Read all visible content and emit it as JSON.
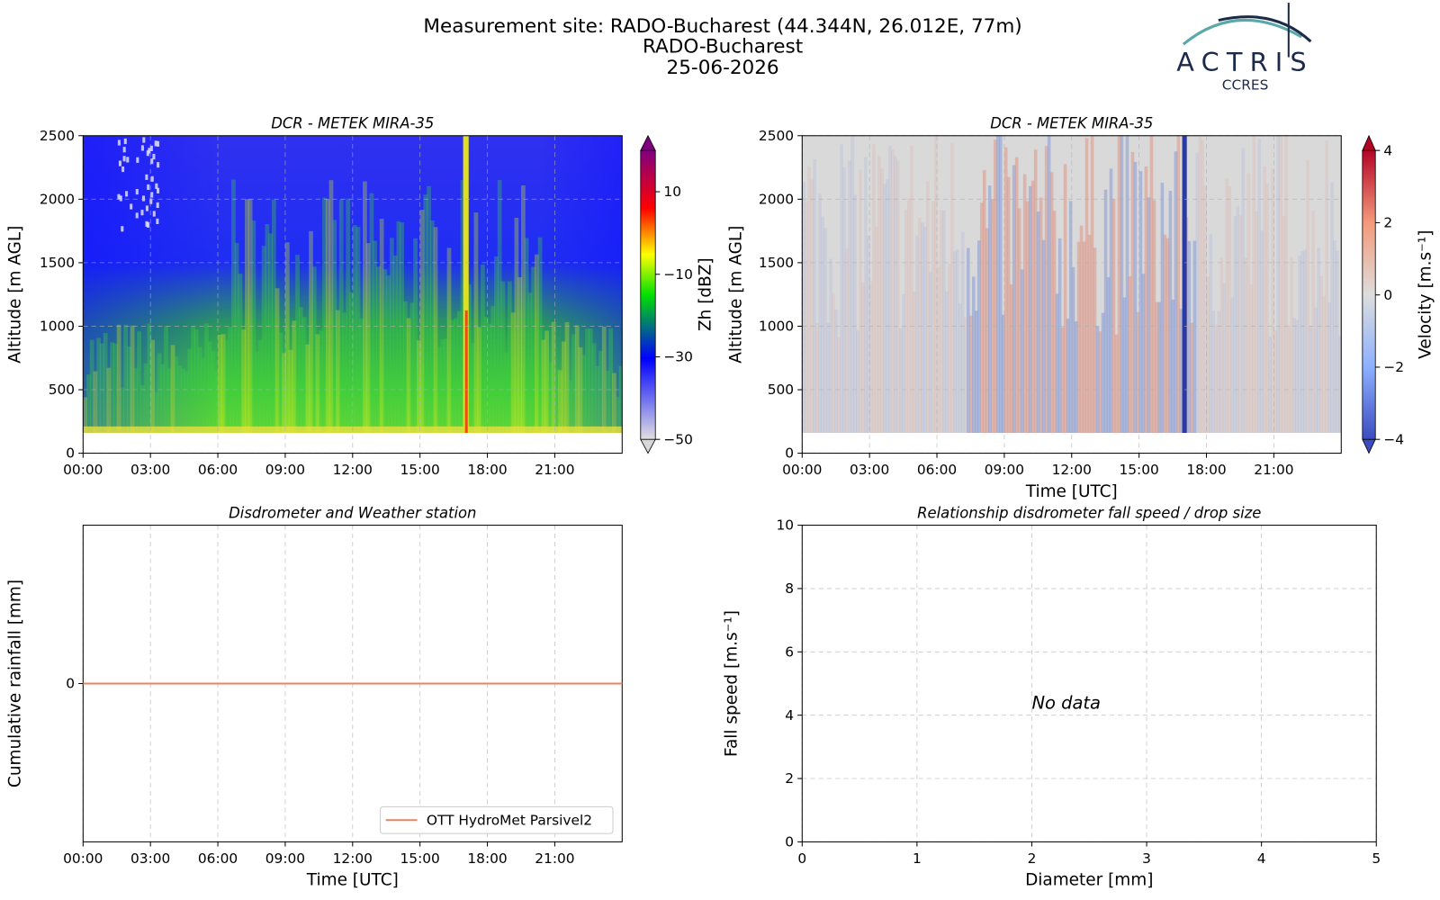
{
  "header": {
    "title": [
      "Measurement site: RADO-Bucharest (44.344N, 26.012E, 77m)",
      "RADO-Bucharest",
      "25-06-2026"
    ],
    "logo": "ACTRIS",
    "logo_sub": "CCRES"
  },
  "chart_data": [
    {
      "type": "heatmap",
      "title": "DCR - METEK MIRA-35",
      "ylabel": "Altitude [m AGL]",
      "xlim": [
        0,
        24
      ],
      "xticks": [
        {
          "value": 0,
          "label": "00:00"
        },
        {
          "value": 3,
          "label": "03:00"
        },
        {
          "value": 6,
          "label": "06:00"
        },
        {
          "value": 9,
          "label": "09:00"
        },
        {
          "value": 12,
          "label": "12:00"
        },
        {
          "value": 15,
          "label": "15:00"
        },
        {
          "value": 18,
          "label": "18:00"
        },
        {
          "value": 21,
          "label": "21:00"
        }
      ],
      "ylim": [
        0,
        2500
      ],
      "yticks": [
        0,
        500,
        1000,
        1500,
        2000,
        2500
      ],
      "grid": true,
      "colorbar": {
        "label": "Zh [dBZ]",
        "lim": [
          -50,
          20
        ],
        "ticks": [
          10,
          {
            "value": -10,
            "label": "−10"
          },
          {
            "value": -30,
            "label": "−30"
          },
          {
            "value": -50,
            "label": "−50"
          }
        ],
        "colormap": "jet"
      }
    },
    {
      "type": "heatmap",
      "title": "DCR - METEK MIRA-35",
      "ylabel": "Altitude [m AGL]",
      "xlabel": "Time [UTC]",
      "xlim": [
        0,
        24
      ],
      "xticks": [
        {
          "value": 0,
          "label": "00:00"
        },
        {
          "value": 3,
          "label": "03:00"
        },
        {
          "value": 6,
          "label": "06:00"
        },
        {
          "value": 9,
          "label": "09:00"
        },
        {
          "value": 12,
          "label": "12:00"
        },
        {
          "value": 15,
          "label": "15:00"
        },
        {
          "value": 18,
          "label": "18:00"
        },
        {
          "value": 21,
          "label": "21:00"
        }
      ],
      "ylim": [
        0,
        2500
      ],
      "yticks": [
        0,
        500,
        1000,
        1500,
        2000,
        2500
      ],
      "grid": true,
      "colorbar": {
        "label": "Velocity [m.s⁻¹]",
        "lim": [
          -4,
          4
        ],
        "ticks": [
          4,
          2,
          0,
          {
            "value": -2,
            "label": "−2"
          },
          {
            "value": -4,
            "label": "−4"
          }
        ],
        "colormap": "coolwarm"
      }
    },
    {
      "type": "line",
      "title": "Disdrometer and Weather station",
      "ylabel": "Cumulative rainfall [mm]",
      "xlabel": "Time [UTC]",
      "xlim": [
        0,
        24
      ],
      "xticks": [
        {
          "value": 0,
          "label": "00:00"
        },
        {
          "value": 3,
          "label": "03:00"
        },
        {
          "value": 6,
          "label": "06:00"
        },
        {
          "value": 9,
          "label": "09:00"
        },
        {
          "value": 12,
          "label": "12:00"
        },
        {
          "value": 15,
          "label": "15:00"
        },
        {
          "value": 18,
          "label": "18:00"
        },
        {
          "value": 21,
          "label": "21:00"
        }
      ],
      "ylim": [
        -1,
        1
      ],
      "yticks": [
        0
      ],
      "grid": true,
      "legend": "lower right",
      "x": [
        0,
        24
      ],
      "series": [
        {
          "name": "OTT HydroMet Parsivel2",
          "color": "#e8845e",
          "values": [
            0,
            0
          ]
        }
      ]
    },
    {
      "type": "scatter",
      "title": "Relationship disdrometer fall speed / drop size",
      "ylabel": "Fall speed [m.s⁻¹]",
      "xlabel": "Diameter [mm]",
      "xlim": [
        0,
        5
      ],
      "xticks": [
        0,
        1,
        2,
        3,
        4,
        5
      ],
      "ylim": [
        0,
        10
      ],
      "yticks": [
        0,
        2,
        4,
        6,
        8,
        10
      ],
      "grid": true,
      "annotation": "No data"
    }
  ]
}
